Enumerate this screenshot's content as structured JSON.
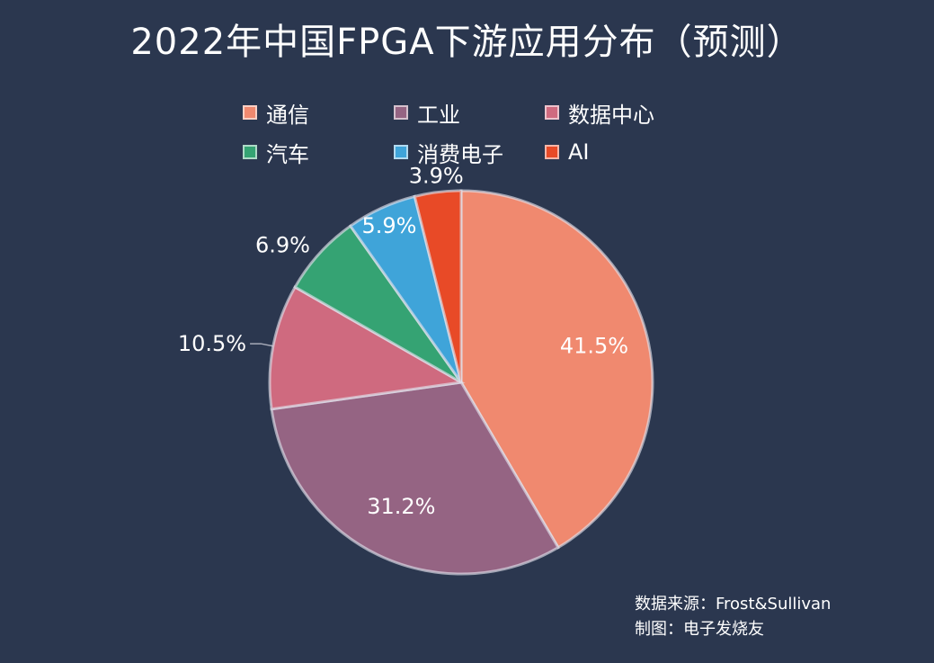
{
  "title": "2022年中国FPGA下游应用分布（预测）",
  "legend": [
    {
      "label": "通信",
      "color": "#f0896f"
    },
    {
      "label": "工业",
      "color": "#956483"
    },
    {
      "label": "数据中心",
      "color": "#cf6a7f"
    },
    {
      "label": "汽车",
      "color": "#35a373"
    },
    {
      "label": "消费电子",
      "color": "#3fa4d9"
    },
    {
      "label": "AI",
      "color": "#e84a27"
    }
  ],
  "chart_data": {
    "type": "pie",
    "title": "2022年中国FPGA下游应用分布（预测）",
    "slices": [
      {
        "label": "通信",
        "value": 41.5,
        "display": "41.5%",
        "color": "#f0896f"
      },
      {
        "label": "工业",
        "value": 31.2,
        "display": "31.2%",
        "color": "#956483"
      },
      {
        "label": "数据中心",
        "value": 10.5,
        "display": "10.5%",
        "color": "#cf6a7f"
      },
      {
        "label": "汽车",
        "value": 6.9,
        "display": "6.9%",
        "color": "#35a373"
      },
      {
        "label": "消费电子",
        "value": 5.9,
        "display": "5.9%",
        "color": "#3fa4d9"
      },
      {
        "label": "AI",
        "value": 3.9,
        "display": "3.9%",
        "color": "#e84a27"
      }
    ],
    "direction": "clockwise",
    "legend_position": "top"
  },
  "source": {
    "line1": "数据来源：Frost&Sullivan",
    "line2": "制图：电子发烧友"
  }
}
